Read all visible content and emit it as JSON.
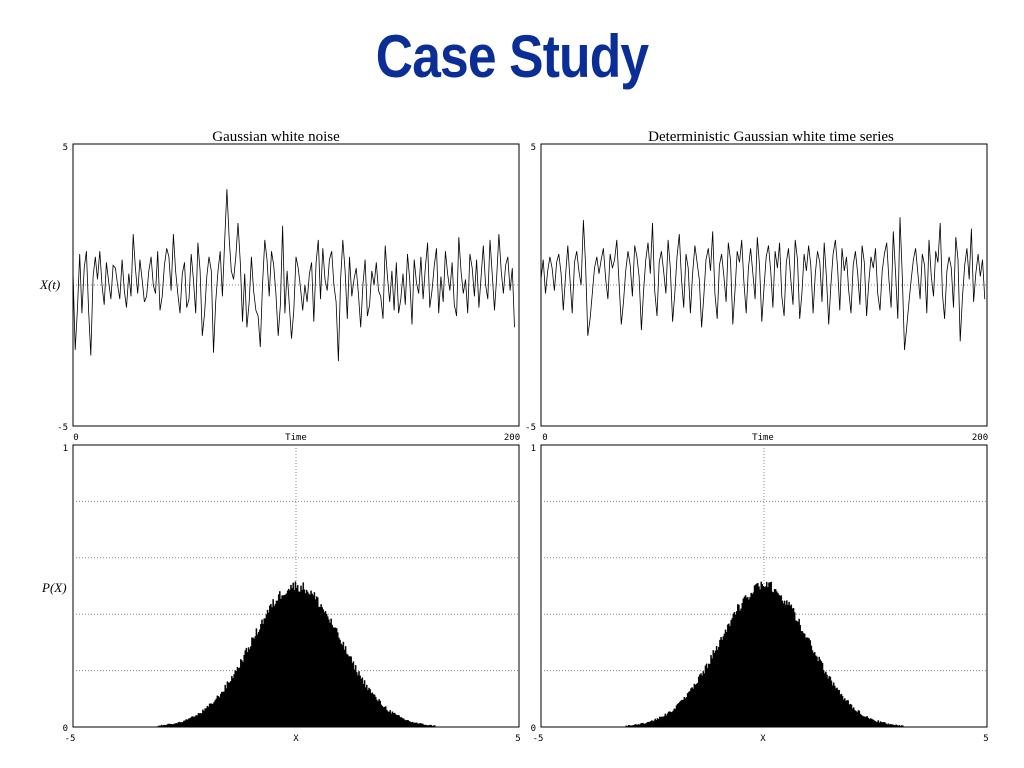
{
  "slide": {
    "title": "Case Study"
  },
  "colors": {
    "title": "#0a2e96",
    "plot_line": "#000000",
    "grid": "#888888"
  },
  "chart_data": [
    {
      "type": "line",
      "title": "Gaussian white noise",
      "xlabel": "Time",
      "ylabel": "X(t)",
      "xlim": [
        0,
        200
      ],
      "ylim": [
        -5,
        5
      ],
      "x_tick_labels": [
        "0",
        "200"
      ],
      "y_tick_labels": [
        "5",
        "-5"
      ],
      "grid": "dotted line at y = 0",
      "series": [
        {
          "step": 1,
          "values": [
            0.5,
            -2.3,
            -0.8,
            1.1,
            -1.0,
            0.6,
            1.2,
            -0.9,
            -2.5,
            0.3,
            1.0,
            0.2,
            1.2,
            0.0,
            -0.7,
            0.8,
            0.1,
            -0.5,
            0.7,
            0.6,
            0.0,
            -0.5,
            0.9,
            -0.2,
            -0.8,
            0.4,
            -0.4,
            1.8,
            0.6,
            -0.3,
            0.9,
            0.2,
            -0.6,
            -0.4,
            0.5,
            1.0,
            0.0,
            -0.3,
            1.2,
            -0.9,
            -0.4,
            0.7,
            1.3,
            1.0,
            -0.2,
            1.8,
            0.5,
            -0.3,
            -1.0,
            0.4,
            0.8,
            -0.8,
            -0.5,
            1.1,
            0.2,
            -1.0,
            1.5,
            0.5,
            -1.8,
            -1.0,
            0.3,
            1.0,
            0.5,
            -2.4,
            -0.6,
            0.5,
            1.2,
            -0.4,
            1.5,
            3.4,
            1.7,
            0.5,
            0.2,
            1.0,
            2.2,
            0.8,
            -1.3,
            0.4,
            -1.5,
            -0.6,
            1.0,
            -0.2,
            -0.9,
            -1.1,
            -2.2,
            0.0,
            1.6,
            0.9,
            -0.4,
            1.2,
            0.7,
            -0.3,
            -1.8,
            -0.7,
            2.1,
            -1.0,
            0.5,
            -0.7,
            -1.9,
            -0.9,
            1.0,
            0.6,
            -0.1,
            -0.9,
            0.0,
            -0.6,
            0.4,
            0.8,
            -1.3,
            0.8,
            1.6,
            -0.5,
            1.3,
            0.2,
            -0.2,
            0.9,
            1.2,
            0.0,
            -0.6,
            -2.7,
            0.2,
            1.6,
            0.5,
            -1.2,
            1.0,
            -0.4,
            0.2,
            0.6,
            -0.3,
            -1.5,
            0.0,
            0.9,
            -1.1,
            -0.7,
            0.5,
            0.0,
            0.8,
            -0.2,
            -0.4,
            -1.2,
            1.4,
            0.3,
            -0.6,
            0.5,
            -0.9,
            0.8,
            -1.0,
            -0.5,
            0.4,
            -0.7,
            1.1,
            0.2,
            -1.4,
            0.9,
            0.1,
            -0.3,
            1.0,
            -0.5,
            0.6,
            1.5,
            -0.8,
            -0.2,
            0.7,
            1.3,
            -1.0,
            0.3,
            -0.6,
            1.2,
            0.4,
            -0.2,
            0.8,
            -0.7,
            -1.1,
            1.7,
            0.5,
            -0.3,
            0.2,
            -1.0,
            1.1,
            0.6,
            -0.4,
            0.9,
            -0.8,
            0.3,
            1.4,
            0.0,
            -0.5,
            1.6,
            0.4,
            -0.9,
            0.3,
            1.8,
            0.5,
            -0.3,
            0.7,
            1.0,
            -0.2,
            0.6,
            -1.5
          ]
        }
      ]
    },
    {
      "type": "line",
      "title": "Deterministic Gaussian white time series",
      "xlabel": "Time",
      "ylabel": "",
      "xlim": [
        0,
        200
      ],
      "ylim": [
        -5,
        5
      ],
      "x_tick_labels": [
        "0",
        "200"
      ],
      "y_tick_labels": [
        "5"
      ],
      "grid": "dotted line at y = 0",
      "series": [
        {
          "step": 1,
          "values": [
            0.2,
            0.9,
            -0.3,
            0.5,
            1.0,
            0.6,
            -0.2,
            0.8,
            1.1,
            0.4,
            -0.9,
            0.3,
            1.4,
            0.2,
            -1.0,
            0.8,
            1.2,
            0.5,
            0.0,
            2.3,
            0.7,
            -1.8,
            -1.2,
            -0.3,
            0.6,
            1.0,
            0.4,
            0.9,
            1.3,
            0.2,
            -0.5,
            1.1,
            0.6,
            0.9,
            1.6,
            0.1,
            -1.4,
            -0.6,
            0.5,
            1.2,
            0.7,
            -0.4,
            1.4,
            1.0,
            0.3,
            -1.6,
            -0.2,
            0.9,
            1.5,
            0.4,
            2.2,
            -0.2,
            -1.1,
            0.8,
            1.2,
            0.5,
            -0.3,
            1.6,
            0.6,
            -1.3,
            -0.3,
            1.0,
            1.8,
            0.2,
            -0.8,
            1.1,
            0.6,
            -1.0,
            0.4,
            1.4,
            0.8,
            0.2,
            -1.5,
            -0.4,
            0.9,
            1.3,
            0.5,
            1.9,
            -0.3,
            -1.2,
            0.7,
            1.1,
            0.3,
            -0.6,
            1.5,
            0.9,
            -1.4,
            -0.2,
            1.2,
            0.8,
            1.6,
            0.1,
            -1.0,
            0.6,
            1.3,
            0.4,
            -0.5,
            1.7,
            0.7,
            -1.3,
            -0.1,
            1.0,
            1.4,
            0.5,
            -0.8,
            1.2,
            0.6,
            1.5,
            -0.4,
            -1.1,
            0.8,
            1.3,
            0.2,
            -0.7,
            1.6,
            0.9,
            -1.2,
            -0.3,
            1.1,
            0.5,
            1.4,
            0.7,
            -1.0,
            0.4,
            1.2,
            0.8,
            -0.6,
            1.5,
            0.3,
            -1.4,
            0.0,
            1.1,
            1.6,
            0.6,
            -0.9,
            1.3,
            0.5,
            1.0,
            -0.2,
            -1.0,
            0.7,
            1.2,
            0.4,
            -0.7,
            1.4,
            0.8,
            -1.1,
            0.1,
            1.0,
            0.6,
            1.3,
            -0.3,
            -0.9,
            0.5,
            1.1,
            1.5,
            0.2,
            -0.8,
            1.9,
            0.4,
            -1.2,
            2.4,
            0.3,
            -2.3,
            -1.5,
            -0.6,
            0.2,
            0.9,
            1.3,
            0.4,
            -0.5,
            1.1,
            0.7,
            -1.0,
            1.6,
            0.3,
            -0.4,
            1.2,
            0.8,
            2.2,
            -0.3,
            -1.2,
            0.5,
            1.0,
            0.6,
            -0.8,
            1.7,
            0.9,
            -2.0,
            -0.4,
            0.7,
            1.3,
            0.2,
            2.0,
            -0.6,
            0.4,
            1.1,
            0.3,
            0.9,
            -0.5
          ]
        }
      ]
    },
    {
      "type": "bar",
      "title": "",
      "xlabel": "X",
      "ylabel": "P(X)",
      "xlim": [
        -5,
        5
      ],
      "ylim": [
        0,
        1
      ],
      "x_tick_labels": [
        "-5",
        "5"
      ],
      "y_tick_labels": [
        "1",
        "0"
      ],
      "grid": "dotted horizontal lines at 0.2, 0.4, 0.6, 0.8 and vertical line at x = 0",
      "histogram": {
        "distribution": "gaussian",
        "mean": 0.0,
        "std": 1.0,
        "peak": 0.5,
        "bin_width": 0.025
      }
    },
    {
      "type": "bar",
      "title": "",
      "xlabel": "X",
      "ylabel": "",
      "xlim": [
        -5,
        5
      ],
      "ylim": [
        0,
        1
      ],
      "x_tick_labels": [
        "-5",
        "5"
      ],
      "y_tick_labels": [
        "1",
        "0"
      ],
      "grid": "dotted horizontal lines at 0.2, 0.4, 0.6, 0.8 and vertical line at x = 0",
      "histogram": {
        "distribution": "gaussian",
        "mean": 0.0,
        "std": 1.0,
        "peak": 0.5,
        "bin_width": 0.025
      }
    }
  ]
}
